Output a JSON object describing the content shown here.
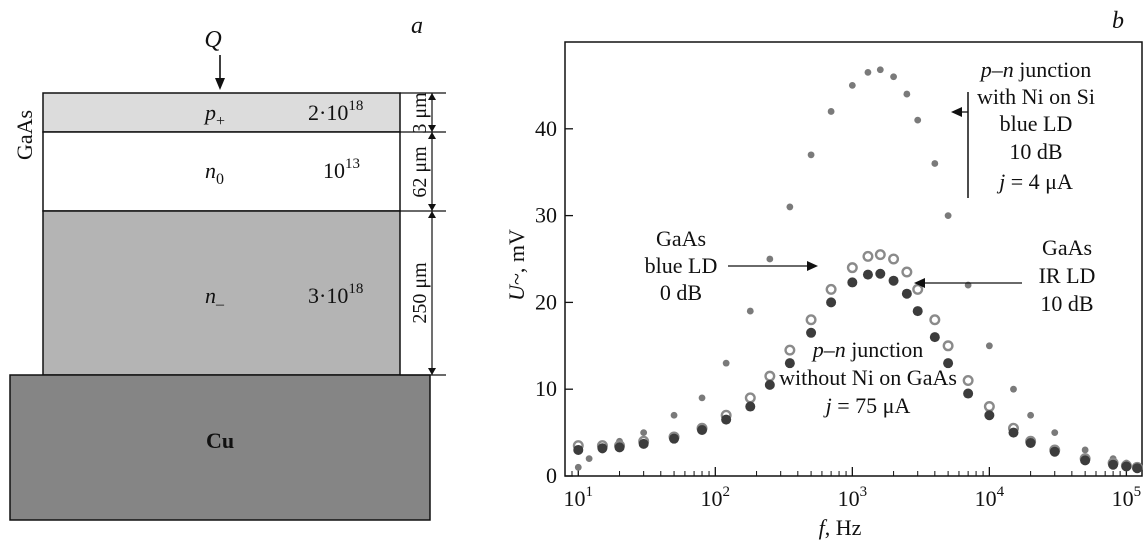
{
  "panel_a": {
    "letter": "a",
    "heat_symbol": "Q",
    "material_label": "GaAs",
    "substrate_label": "Cu",
    "layers": [
      {
        "name_main": "p",
        "name_sub": "+",
        "doping_base": "2·10",
        "doping_exp": "18",
        "thickness": "3 μm",
        "fill": "#dcdcdc"
      },
      {
        "name_main": "n",
        "name_sub": "0",
        "doping_base": "10",
        "doping_exp": "13",
        "thickness": "62 μm",
        "fill": "#ffffff"
      },
      {
        "name_main": "n",
        "name_sub": "–",
        "doping_base": "3·10",
        "doping_exp": "18",
        "thickness": "250 μm",
        "fill": "#b4b4b4"
      }
    ],
    "substrate_fill": "#858585"
  },
  "panel_b": {
    "letter": "b",
    "annotations": {
      "pn_ni_si": [
        "p–n junction",
        "with Ni on Si",
        "blue LD",
        "10 dB",
        "j = 4 μA"
      ],
      "gaas_blue": [
        "GaAs",
        "blue LD",
        "0 dB"
      ],
      "gaas_ir": [
        "GaAs",
        "IR LD",
        "10 dB"
      ],
      "pn_no_ni": [
        "p–n junction",
        "without Ni on GaAs",
        "j = 75 μA"
      ]
    }
  },
  "chart_data": {
    "type": "scatter",
    "x_scale": "log",
    "xlabel": "f, Hz",
    "ylabel": "U~, mV",
    "xlim": [
      8,
      130000
    ],
    "ylim": [
      0,
      50
    ],
    "x_ticks": [
      {
        "base": "10",
        "exp": "1"
      },
      {
        "base": "10",
        "exp": "2"
      },
      {
        "base": "10",
        "exp": "3"
      },
      {
        "base": "10",
        "exp": "4"
      },
      {
        "base": "10",
        "exp": "5"
      }
    ],
    "y_ticks": [
      "0",
      "10",
      "20",
      "30",
      "40"
    ],
    "series": [
      {
        "name": "p–n junction with Ni on Si blue LD 10 dB j = 4 μA",
        "marker": "small-gray-dot",
        "color": "#7a7a7a",
        "x": [
          10,
          12,
          15,
          20,
          30,
          50,
          80,
          120,
          180,
          250,
          350,
          500,
          700,
          1000,
          1300,
          1600,
          2000,
          2500,
          3000,
          4000,
          5000,
          7000,
          10000,
          15000,
          20000,
          30000,
          50000,
          80000,
          100000,
          120000
        ],
        "y": [
          1.0,
          2.0,
          3.0,
          4.0,
          5.0,
          7.0,
          9.0,
          13.0,
          19.0,
          25.0,
          31.0,
          37.0,
          42.0,
          45.0,
          46.5,
          46.8,
          46.0,
          44.0,
          41.0,
          36.0,
          30.0,
          22.0,
          15.0,
          10.0,
          7.0,
          5.0,
          3.0,
          2.0,
          1.5,
          1.0
        ]
      },
      {
        "name": "GaAs blue LD 0 dB",
        "marker": "open-circle",
        "color": "#8a8a8a",
        "x": [
          10,
          15,
          20,
          30,
          50,
          80,
          120,
          180,
          250,
          350,
          500,
          700,
          1000,
          1300,
          1600,
          2000,
          2500,
          3000,
          4000,
          5000,
          7000,
          10000,
          15000,
          20000,
          30000,
          50000,
          80000,
          100000,
          120000
        ],
        "y": [
          3.5,
          3.5,
          3.5,
          4.0,
          4.5,
          5.5,
          7.0,
          9.0,
          11.5,
          14.5,
          18.0,
          21.5,
          24.0,
          25.3,
          25.5,
          25.0,
          23.5,
          21.5,
          18.0,
          15.0,
          11.0,
          8.0,
          5.5,
          4.0,
          3.0,
          2.0,
          1.5,
          1.2,
          1.0
        ]
      },
      {
        "name": "GaAs IR LD 10 dB",
        "marker": "filled-circle",
        "color": "#3c3c3c",
        "x": [
          10,
          15,
          20,
          30,
          50,
          80,
          120,
          180,
          250,
          350,
          500,
          700,
          1000,
          1300,
          1600,
          2000,
          2500,
          3000,
          4000,
          5000,
          7000,
          10000,
          15000,
          20000,
          30000,
          50000,
          80000,
          100000,
          120000
        ],
        "y": [
          3.0,
          3.2,
          3.3,
          3.7,
          4.3,
          5.3,
          6.5,
          8.0,
          10.5,
          13.0,
          16.5,
          20.0,
          22.3,
          23.2,
          23.3,
          22.5,
          21.0,
          19.0,
          16.0,
          13.0,
          9.5,
          7.0,
          5.0,
          3.8,
          2.8,
          1.8,
          1.3,
          1.1,
          0.9
        ]
      }
    ]
  }
}
